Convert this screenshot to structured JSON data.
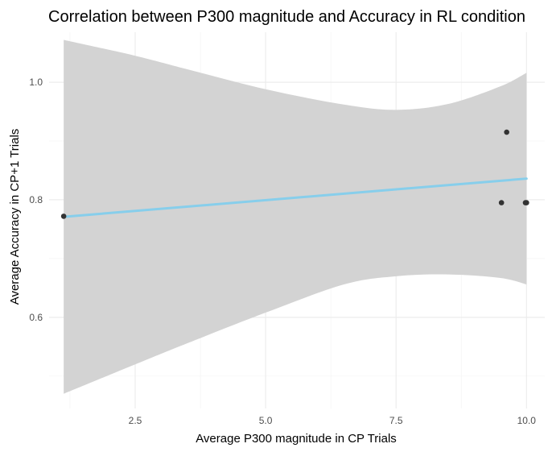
{
  "chart_data": {
    "type": "scatter",
    "title": "Correlation between P300 magnitude and Accuracy in RL condition",
    "xlabel": "Average P300 magnitude in CP Trials",
    "ylabel": "Average Accuracy in CP+1 Trials",
    "xlim": [
      0.85,
      10.35
    ],
    "ylim": [
      0.445,
      1.085
    ],
    "x_ticks": [
      2.5,
      5.0,
      7.5,
      10.0
    ],
    "x_tick_labels": [
      "2.5",
      "5.0",
      "7.5",
      "10.0"
    ],
    "y_ticks": [
      0.6,
      0.8,
      1.0
    ],
    "y_tick_labels": [
      "0.6",
      "0.8",
      "1.0"
    ],
    "grid": true,
    "legend": "none",
    "points": [
      {
        "x": 1.13,
        "y": 0.772
      },
      {
        "x": 9.52,
        "y": 0.795
      },
      {
        "x": 9.62,
        "y": 0.915
      },
      {
        "x": 9.98,
        "y": 0.795
      },
      {
        "x": 10.0,
        "y": 0.795
      }
    ],
    "fit_line": {
      "x": [
        1.13,
        10.0
      ],
      "y": [
        0.771,
        0.836
      ],
      "color": "#87ceeb"
    },
    "confidence_band": {
      "color": "#d3d3d3",
      "x": [
        1.13,
        2.5,
        3.5,
        5.0,
        6.5,
        7.5,
        8.5,
        9.5,
        10.0
      ],
      "upper": [
        1.072,
        1.045,
        1.022,
        0.988,
        0.962,
        0.953,
        0.963,
        0.993,
        1.016
      ],
      "lower": [
        0.47,
        0.52,
        0.556,
        0.608,
        0.656,
        0.67,
        0.673,
        0.667,
        0.656
      ]
    },
    "point_color": "#333333"
  }
}
